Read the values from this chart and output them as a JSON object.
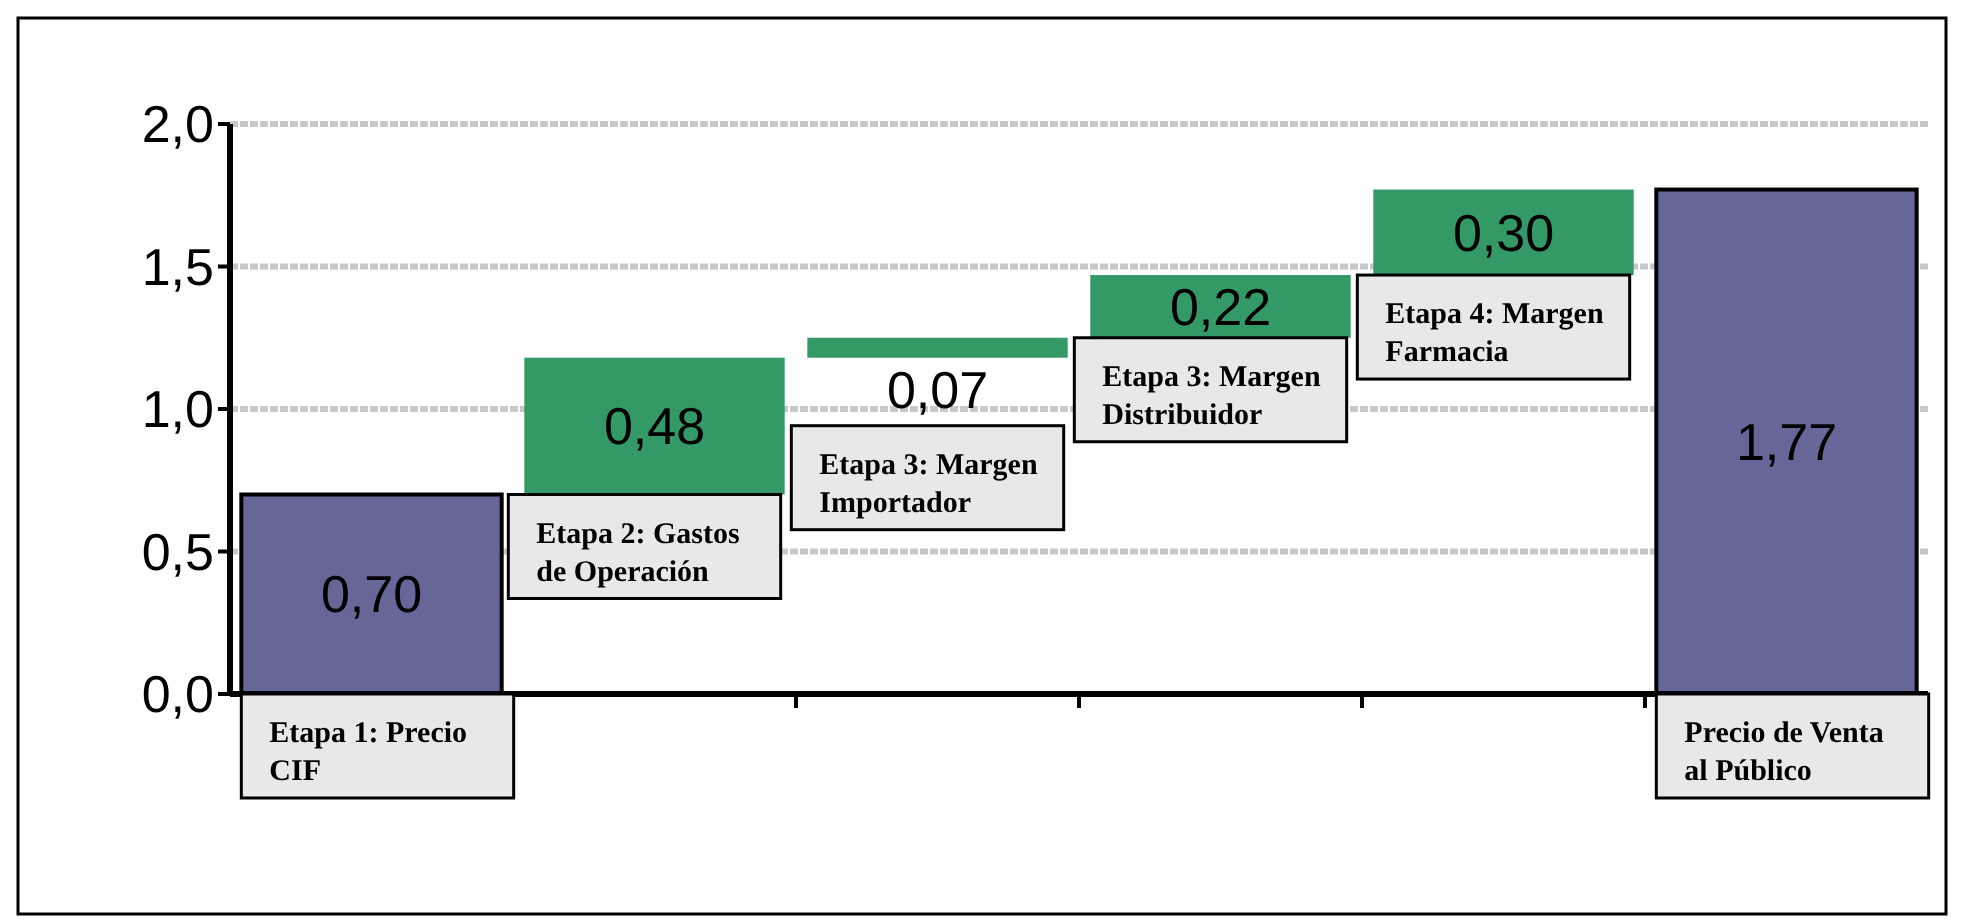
{
  "chart_data": {
    "type": "bar",
    "categories": [
      "Etapa 1: Precio CIF",
      "Etapa 2: Gastos de Operación",
      "Etapa 3: Margen Importador",
      "Etapa 3: Margen Distribuidor",
      "Etapa 4: Margen Farmacia",
      "Precio de Venta al Público"
    ],
    "values": [
      0.7,
      0.48,
      0.07,
      0.22,
      0.3,
      1.77
    ],
    "base": [
      0,
      0.7,
      1.18,
      1.25,
      1.47,
      0
    ],
    "colors": [
      "#666699",
      "#339966",
      "#339966",
      "#339966",
      "#339966",
      "#666699"
    ],
    "value_labels": [
      "0,70",
      "0,48",
      "0,07",
      "0,22",
      "0,30",
      "1,77"
    ],
    "ylim": [
      0,
      2
    ],
    "yticks": [
      {
        "value": 0,
        "label": "0,0"
      },
      {
        "value": 0.5,
        "label": "0,5"
      },
      {
        "value": 1,
        "label": "1,0"
      },
      {
        "value": 1.5,
        "label": "1,5"
      },
      {
        "value": 2,
        "label": "2,0"
      }
    ],
    "grid": "y"
  }
}
